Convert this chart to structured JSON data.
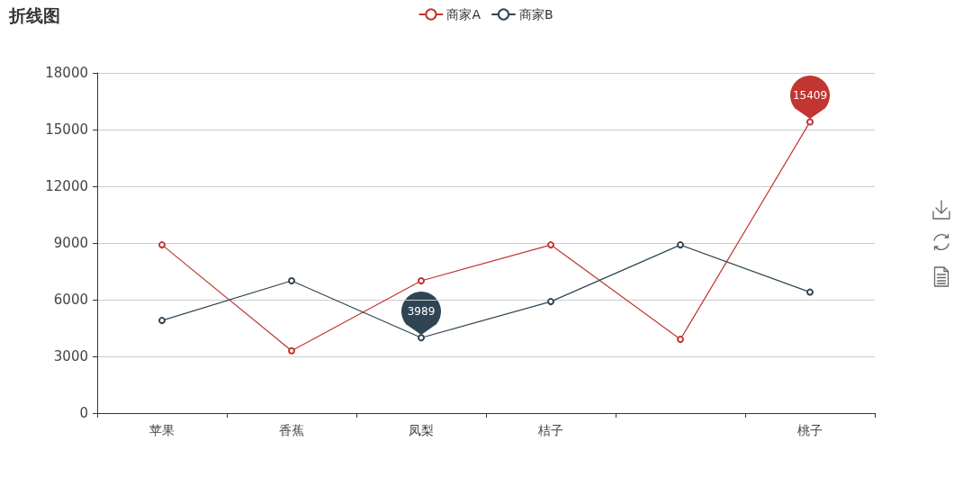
{
  "chart_data": {
    "type": "line",
    "title": "折线图",
    "categories": [
      "苹果",
      "香蕉",
      "凤梨",
      "桔子",
      null,
      "桃子"
    ],
    "series": [
      {
        "name": "商家A",
        "color": "#c23531",
        "values": [
          8900,
          3300,
          7000,
          8900,
          3900,
          15409
        ],
        "value_labels": [
          null,
          null,
          null,
          null,
          null,
          "15409"
        ]
      },
      {
        "name": "商家B",
        "color": "#2f4554",
        "values": [
          4900,
          7000,
          3989,
          5900,
          8900,
          6400
        ],
        "value_labels": [
          null,
          null,
          "3989",
          null,
          null,
          null
        ]
      }
    ],
    "ylim": [
      0,
      18000
    ],
    "yticks": [
      0,
      3000,
      6000,
      9000,
      12000,
      15000,
      18000
    ],
    "grid": "y",
    "legend": "top",
    "marker": "circle"
  }
}
